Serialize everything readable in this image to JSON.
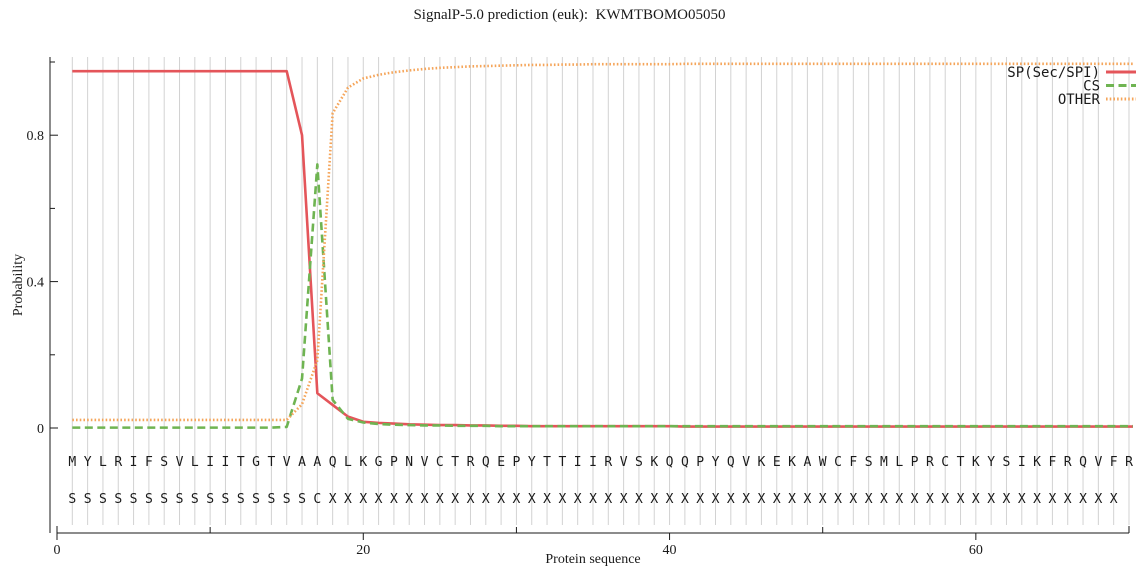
{
  "title": "SignalP-5.0 prediction (euk):  KWMTBOMO05050",
  "chart_data": {
    "type": "line",
    "title": "SignalP-5.0 prediction (euk):  KWMTBOMO05050",
    "xlabel": "Protein sequence",
    "ylabel": "Probability",
    "xlim": [
      0,
      70.3
    ],
    "ylim": [
      0,
      1.0
    ],
    "x_major_ticks": [
      0,
      20,
      40,
      60
    ],
    "x_minor_ticks": [
      10,
      30,
      50,
      70
    ],
    "y_major_ticks": [
      0,
      0.4,
      0.8
    ],
    "y_minor_ticks": [
      0.2,
      0.6,
      1.0
    ],
    "grid": "vertical line at every residue position 1-70",
    "legend_position": "top-right-inside",
    "sequence": "MYLRIFSVLIITGTVAAQLKGPNVCTRQEPYTTIIRVSKQQPYQVKEKAWCFSMLPRCTKYSIKFRQVFR",
    "annotation": "SSSSSSSSSSSSSSSSCXXXXXXXXXXXXXXXXXXXXXXXXXXXXXXXXXXXXXXXXXXXXXXXXXXXX",
    "x": [
      1,
      2,
      3,
      4,
      5,
      6,
      7,
      8,
      9,
      10,
      11,
      12,
      13,
      14,
      15,
      16,
      17,
      18,
      19,
      20,
      21,
      22,
      23,
      24,
      25,
      26,
      27,
      28,
      29,
      30,
      31,
      32,
      33,
      34,
      35,
      36,
      37,
      38,
      39,
      40,
      41,
      42,
      43,
      44,
      45,
      46,
      47,
      48,
      49,
      50,
      51,
      52,
      53,
      54,
      55,
      56,
      57,
      58,
      59,
      60,
      61,
      62,
      63,
      64,
      65,
      66,
      67,
      68,
      69,
      70
    ],
    "series": [
      {
        "name": "SP(Sec/SPI)",
        "color": "#e4555a",
        "style": "solid",
        "values": [
          0.975,
          0.975,
          0.975,
          0.975,
          0.975,
          0.975,
          0.975,
          0.975,
          0.975,
          0.975,
          0.975,
          0.975,
          0.975,
          0.975,
          0.975,
          0.8,
          0.095,
          0.063,
          0.031,
          0.017,
          0.014,
          0.012,
          0.01,
          0.009,
          0.008,
          0.008,
          0.007,
          0.007,
          0.006,
          0.006,
          0.005,
          0.005,
          0.005,
          0.005,
          0.005,
          0.005,
          0.005,
          0.005,
          0.005,
          0.005,
          0.004,
          0.004,
          0.004,
          0.004,
          0.004,
          0.004,
          0.004,
          0.004,
          0.004,
          0.004,
          0.004,
          0.004,
          0.004,
          0.004,
          0.004,
          0.004,
          0.004,
          0.004,
          0.004,
          0.004,
          0.004,
          0.004,
          0.004,
          0.004,
          0.004,
          0.004,
          0.004,
          0.004,
          0.004,
          0.004
        ]
      },
      {
        "name": "CS",
        "color": "#6fb452",
        "style": "dashed",
        "values": [
          0.001,
          0.001,
          0.001,
          0.001,
          0.001,
          0.001,
          0.001,
          0.001,
          0.001,
          0.001,
          0.001,
          0.001,
          0.001,
          0.001,
          0.003,
          0.135,
          0.72,
          0.077,
          0.025,
          0.015,
          0.011,
          0.009,
          0.008,
          0.007,
          0.007,
          0.006,
          0.006,
          0.006,
          0.005,
          0.005,
          0.005,
          0.005,
          0.005,
          0.005,
          0.005,
          0.005,
          0.005,
          0.005,
          0.005,
          0.005,
          0.005,
          0.005,
          0.005,
          0.005,
          0.005,
          0.005,
          0.005,
          0.005,
          0.005,
          0.005,
          0.005,
          0.005,
          0.005,
          0.005,
          0.005,
          0.005,
          0.005,
          0.005,
          0.005,
          0.005,
          0.005,
          0.005,
          0.005,
          0.005,
          0.005,
          0.005,
          0.005,
          0.005,
          0.005,
          0.005
        ]
      },
      {
        "name": "OTHER",
        "color": "#f5a55a",
        "style": "dotted",
        "values": [
          0.022,
          0.022,
          0.022,
          0.022,
          0.022,
          0.022,
          0.022,
          0.022,
          0.022,
          0.022,
          0.022,
          0.022,
          0.022,
          0.022,
          0.022,
          0.065,
          0.185,
          0.86,
          0.93,
          0.955,
          0.965,
          0.972,
          0.977,
          0.981,
          0.984,
          0.986,
          0.988,
          0.989,
          0.99,
          0.991,
          0.992,
          0.992,
          0.993,
          0.993,
          0.994,
          0.994,
          0.994,
          0.994,
          0.994,
          0.994,
          0.995,
          0.995,
          0.995,
          0.995,
          0.995,
          0.995,
          0.995,
          0.995,
          0.995,
          0.995,
          0.995,
          0.995,
          0.995,
          0.995,
          0.995,
          0.995,
          0.995,
          0.995,
          0.995,
          0.995,
          0.995,
          0.995,
          0.995,
          0.995,
          0.995,
          0.995,
          0.995,
          0.995,
          0.995,
          0.995
        ]
      }
    ]
  }
}
